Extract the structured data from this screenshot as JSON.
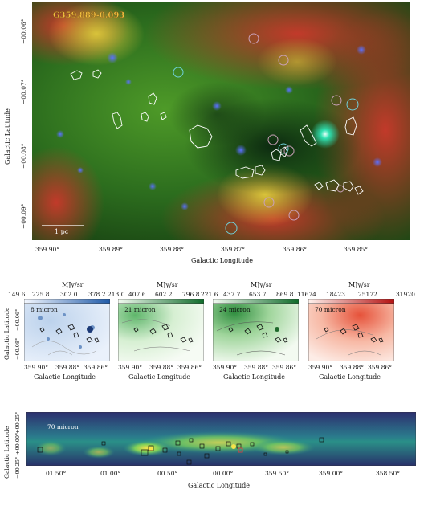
{
  "main_panel": {
    "source_name": "G359.889-0.093",
    "scale_bar_label": "1 pc",
    "xlabel": "Galactic Longitude",
    "ylabel": "Galactic Latitude",
    "x_ticks": [
      "359.90°",
      "359.89°",
      "359.88°",
      "359.87°",
      "359.86°",
      "359.85°"
    ],
    "y_ticks": [
      "−00.06°",
      "−00.07°",
      "−00.08°",
      "−00.09°"
    ]
  },
  "small_panels": [
    {
      "unit": "MJy/sr",
      "ticks": [
        "149.6",
        "225.8",
        "302.0",
        "378.2"
      ],
      "label": "8 micron",
      "colormap": "blue"
    },
    {
      "unit": "MJy/sr",
      "ticks": [
        "213.0",
        "407.6",
        "602.2",
        "796.8"
      ],
      "label": "21 micron",
      "colormap": "green"
    },
    {
      "unit": "MJy/sr",
      "ticks": [
        "221.6",
        "437.7",
        "653.7",
        "869.8"
      ],
      "label": "24 micron",
      "colormap": "green"
    },
    {
      "unit": "MJy/sr",
      "ticks": [
        "11674",
        "18423",
        "25172",
        "31920"
      ],
      "label": "70 micron",
      "colormap": "red"
    }
  ],
  "small_panel_axes": {
    "xlabel": "Galactic Longitude",
    "ylabel": "Galactic Latitude",
    "x_ticks": [
      "359.90°",
      "359.88°",
      "359.86°"
    ],
    "y_ticks": [
      "−00.06°",
      "−00.08°"
    ]
  },
  "bottom_panel": {
    "label": "70 micron",
    "xlabel": "Galactic Longitude",
    "ylabel": "Galactic Latitude",
    "x_ticks": [
      "01.50°",
      "01.00°",
      "00.50°",
      "00.00°",
      "359.50°",
      "359.00°",
      "358.50°"
    ],
    "y_ticks": [
      "+00.25°",
      "+00.00°",
      "−00.25°"
    ]
  },
  "colors": {
    "contour": "#ffffff",
    "circle": "#6fd0d8",
    "source_name": "#f0c040"
  }
}
